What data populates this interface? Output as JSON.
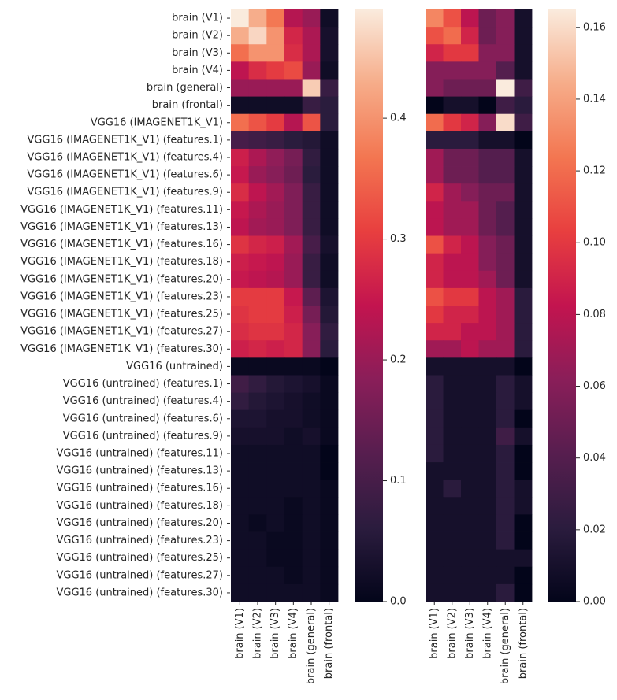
{
  "chart_data": {
    "type": "heatmap",
    "row_labels": [
      "brain (V1)",
      "brain (V2)",
      "brain (V3)",
      "brain (V4)",
      "brain (general)",
      "brain (frontal)",
      "VGG16 (IMAGENET1K_V1)",
      "VGG16 (IMAGENET1K_V1) (features.1)",
      "VGG16 (IMAGENET1K_V1) (features.4)",
      "VGG16 (IMAGENET1K_V1) (features.6)",
      "VGG16 (IMAGENET1K_V1) (features.9)",
      "VGG16 (IMAGENET1K_V1) (features.11)",
      "VGG16 (IMAGENET1K_V1) (features.13)",
      "VGG16 (IMAGENET1K_V1) (features.16)",
      "VGG16 (IMAGENET1K_V1) (features.18)",
      "VGG16 (IMAGENET1K_V1) (features.20)",
      "VGG16 (IMAGENET1K_V1) (features.23)",
      "VGG16 (IMAGENET1K_V1) (features.25)",
      "VGG16 (IMAGENET1K_V1) (features.27)",
      "VGG16 (IMAGENET1K_V1) (features.30)",
      "VGG16 (untrained)",
      "VGG16 (untrained) (features.1)",
      "VGG16 (untrained) (features.4)",
      "VGG16 (untrained) (features.6)",
      "VGG16 (untrained) (features.9)",
      "VGG16 (untrained) (features.11)",
      "VGG16 (untrained) (features.13)",
      "VGG16 (untrained) (features.16)",
      "VGG16 (untrained) (features.18)",
      "VGG16 (untrained) (features.20)",
      "VGG16 (untrained) (features.23)",
      "VGG16 (untrained) (features.25)",
      "VGG16 (untrained) (features.27)",
      "VGG16 (untrained) (features.30)"
    ],
    "col_labels": [
      "brain (V1)",
      "brain (V2)",
      "brain (V3)",
      "brain (V4)",
      "brain (general)",
      "brain (frontal)"
    ],
    "panels": [
      {
        "name": "left",
        "vmin": 0.0,
        "vmax": 0.49,
        "colorbar_ticks": [
          0.0,
          0.1,
          0.2,
          0.3,
          0.4
        ],
        "colorbar_tick_labels": [
          "0.0",
          "0.1",
          "0.2",
          "0.3",
          "0.4"
        ],
        "values": [
          [
            0.49,
            0.43,
            0.37,
            0.23,
            0.2,
            0.02
          ],
          [
            0.43,
            0.47,
            0.4,
            0.27,
            0.22,
            0.03
          ],
          [
            0.36,
            0.4,
            0.4,
            0.28,
            0.22,
            0.03
          ],
          [
            0.24,
            0.28,
            0.3,
            0.32,
            0.2,
            0.02
          ],
          [
            0.2,
            0.2,
            0.2,
            0.2,
            0.46,
            0.08
          ],
          [
            0.02,
            0.02,
            0.02,
            0.02,
            0.08,
            0.06
          ],
          [
            0.36,
            0.33,
            0.3,
            0.23,
            0.33,
            0.06
          ],
          [
            0.1,
            0.09,
            0.08,
            0.06,
            0.05,
            0.02
          ],
          [
            0.26,
            0.22,
            0.19,
            0.16,
            0.07,
            0.02
          ],
          [
            0.25,
            0.2,
            0.18,
            0.15,
            0.06,
            0.02
          ],
          [
            0.28,
            0.24,
            0.21,
            0.17,
            0.08,
            0.02
          ],
          [
            0.25,
            0.22,
            0.2,
            0.17,
            0.08,
            0.02
          ],
          [
            0.24,
            0.21,
            0.2,
            0.17,
            0.08,
            0.02
          ],
          [
            0.29,
            0.27,
            0.26,
            0.21,
            0.1,
            0.03
          ],
          [
            0.26,
            0.25,
            0.24,
            0.2,
            0.08,
            0.02
          ],
          [
            0.25,
            0.24,
            0.23,
            0.2,
            0.08,
            0.02
          ],
          [
            0.3,
            0.3,
            0.3,
            0.25,
            0.13,
            0.04
          ],
          [
            0.29,
            0.3,
            0.3,
            0.26,
            0.16,
            0.05
          ],
          [
            0.28,
            0.29,
            0.29,
            0.27,
            0.18,
            0.07
          ],
          [
            0.26,
            0.27,
            0.26,
            0.27,
            0.18,
            0.06
          ],
          [
            0.01,
            0.01,
            0.01,
            0.01,
            0.01,
            0.0
          ],
          [
            0.09,
            0.07,
            0.05,
            0.04,
            0.03,
            0.01
          ],
          [
            0.07,
            0.05,
            0.04,
            0.03,
            0.02,
            0.01
          ],
          [
            0.04,
            0.04,
            0.03,
            0.03,
            0.02,
            0.01
          ],
          [
            0.03,
            0.03,
            0.03,
            0.02,
            0.03,
            0.01
          ],
          [
            0.02,
            0.02,
            0.02,
            0.02,
            0.02,
            0.0
          ],
          [
            0.02,
            0.02,
            0.02,
            0.02,
            0.02,
            0.0
          ],
          [
            0.02,
            0.02,
            0.02,
            0.02,
            0.02,
            0.01
          ],
          [
            0.02,
            0.02,
            0.02,
            0.01,
            0.02,
            0.01
          ],
          [
            0.02,
            0.01,
            0.02,
            0.01,
            0.02,
            0.01
          ],
          [
            0.02,
            0.02,
            0.01,
            0.01,
            0.02,
            0.01
          ],
          [
            0.02,
            0.02,
            0.01,
            0.01,
            0.02,
            0.01
          ],
          [
            0.02,
            0.02,
            0.02,
            0.01,
            0.02,
            0.01
          ],
          [
            0.02,
            0.02,
            0.02,
            0.02,
            0.02,
            0.01
          ]
        ]
      },
      {
        "name": "right",
        "vmin": 0.0,
        "vmax": 0.165,
        "colorbar_ticks": [
          0.0,
          0.02,
          0.04,
          0.06,
          0.08,
          0.1,
          0.12,
          0.14,
          0.16
        ],
        "colorbar_tick_labels": [
          "0.00",
          "0.02",
          "0.04",
          "0.06",
          "0.08",
          "0.10",
          "0.12",
          "0.14",
          "0.16"
        ],
        "values": [
          [
            0.13,
            0.11,
            0.08,
            0.05,
            0.06,
            0.01
          ],
          [
            0.11,
            0.12,
            0.09,
            0.05,
            0.06,
            0.01
          ],
          [
            0.09,
            0.1,
            0.1,
            0.06,
            0.06,
            0.01
          ],
          [
            0.06,
            0.06,
            0.06,
            0.06,
            0.04,
            0.01
          ],
          [
            0.06,
            0.05,
            0.05,
            0.05,
            0.165,
            0.03
          ],
          [
            0.0,
            0.01,
            0.01,
            0.0,
            0.03,
            0.02
          ],
          [
            0.12,
            0.1,
            0.09,
            0.06,
            0.16,
            0.03
          ],
          [
            0.02,
            0.02,
            0.02,
            0.01,
            0.01,
            0.0
          ],
          [
            0.07,
            0.05,
            0.05,
            0.04,
            0.04,
            0.01
          ],
          [
            0.07,
            0.05,
            0.05,
            0.04,
            0.04,
            0.01
          ],
          [
            0.09,
            0.07,
            0.06,
            0.05,
            0.05,
            0.01
          ],
          [
            0.08,
            0.07,
            0.07,
            0.05,
            0.04,
            0.01
          ],
          [
            0.08,
            0.07,
            0.07,
            0.05,
            0.04,
            0.01
          ],
          [
            0.11,
            0.09,
            0.08,
            0.06,
            0.05,
            0.01
          ],
          [
            0.09,
            0.08,
            0.08,
            0.06,
            0.05,
            0.01
          ],
          [
            0.09,
            0.08,
            0.08,
            0.07,
            0.05,
            0.01
          ],
          [
            0.11,
            0.1,
            0.1,
            0.08,
            0.07,
            0.02
          ],
          [
            0.1,
            0.09,
            0.09,
            0.08,
            0.07,
            0.02
          ],
          [
            0.09,
            0.09,
            0.08,
            0.08,
            0.07,
            0.02
          ],
          [
            0.07,
            0.07,
            0.08,
            0.07,
            0.07,
            0.02
          ],
          [
            0.01,
            0.01,
            0.01,
            0.01,
            0.01,
            0.0
          ],
          [
            0.02,
            0.01,
            0.01,
            0.01,
            0.02,
            0.01
          ],
          [
            0.02,
            0.01,
            0.01,
            0.01,
            0.02,
            0.01
          ],
          [
            0.02,
            0.01,
            0.01,
            0.01,
            0.02,
            0.0
          ],
          [
            0.02,
            0.01,
            0.01,
            0.01,
            0.03,
            0.01
          ],
          [
            0.02,
            0.01,
            0.01,
            0.01,
            0.02,
            0.0
          ],
          [
            0.01,
            0.01,
            0.01,
            0.01,
            0.02,
            0.0
          ],
          [
            0.01,
            0.02,
            0.01,
            0.01,
            0.02,
            0.01
          ],
          [
            0.01,
            0.01,
            0.01,
            0.01,
            0.02,
            0.01
          ],
          [
            0.01,
            0.01,
            0.01,
            0.01,
            0.02,
            0.0
          ],
          [
            0.01,
            0.01,
            0.01,
            0.01,
            0.02,
            0.0
          ],
          [
            0.01,
            0.01,
            0.01,
            0.01,
            0.01,
            0.01
          ],
          [
            0.01,
            0.01,
            0.01,
            0.01,
            0.01,
            0.0
          ],
          [
            0.01,
            0.01,
            0.01,
            0.01,
            0.02,
            0.0
          ]
        ]
      }
    ]
  }
}
